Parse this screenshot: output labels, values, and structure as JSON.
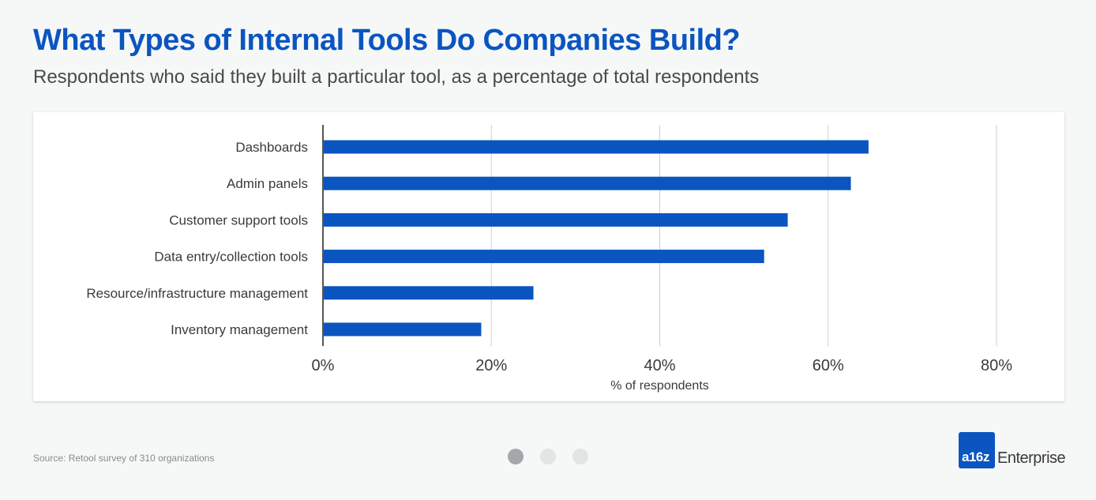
{
  "header": {
    "title": "What Types of Internal Tools Do Companies Build?",
    "subtitle": "Respondents who said they built a particular tool, as a percentage of total respondents"
  },
  "chart_data": {
    "type": "bar",
    "orientation": "horizontal",
    "categories": [
      "Dashboards",
      "Admin panels",
      "Customer support tools",
      "Data entry/collection tools",
      "Resource/infrastructure management",
      "Inventory management"
    ],
    "values": [
      64.8,
      62.7,
      55.2,
      52.4,
      25.0,
      18.8
    ],
    "xlim": [
      0,
      80
    ],
    "xticks": [
      0,
      20,
      40,
      60,
      80
    ],
    "xtick_labels": [
      "0%",
      "20%",
      "40%",
      "60%",
      "80%"
    ],
    "xlabel": "% of respondents",
    "ylabel": "",
    "grid": "vertical",
    "bar_color": "#0a55c0",
    "grid_color": "#cfcfcf",
    "axis_color": "#555555"
  },
  "footer": {
    "source": "Source: Retool survey of 310 organizations",
    "pager": {
      "count": 3,
      "active": 0
    }
  },
  "brand": {
    "mark": "a16z",
    "name": "Enterprise",
    "color": "#0a55c0"
  }
}
